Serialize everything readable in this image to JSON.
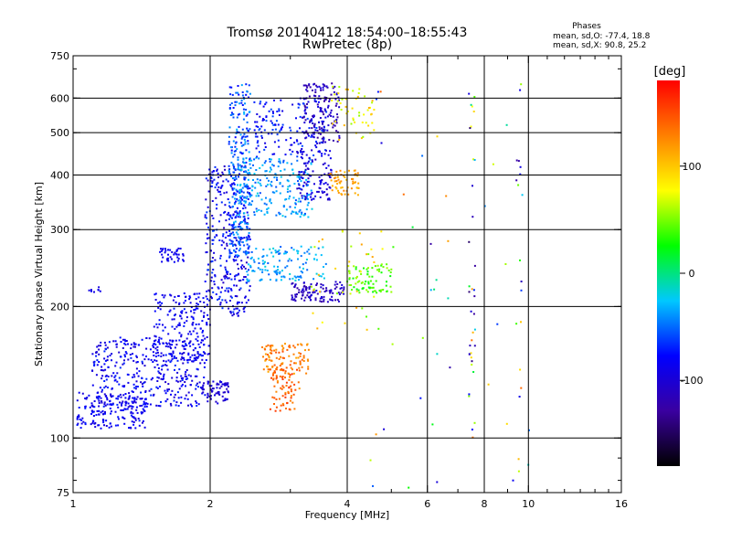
{
  "chart_data": {
    "type": "scatter",
    "title": "Tromsø 20140412 18:54:00–18:55:43",
    "subtitle": "RwPretec (8p)",
    "stats": {
      "heading": "Phases",
      "line1": "mean, sd,O: -77.4, 18.8",
      "line2": "mean, sd,X:  90.8, 25.2"
    },
    "xlabel": "Frequency [MHz]",
    "ylabel": "Stationary phase Virtual Height [km]",
    "x_scale": "log",
    "y_scale": "log",
    "xlim": [
      1,
      16
    ],
    "ylim": [
      75,
      750
    ],
    "x_ticks": [
      1,
      2,
      4,
      6,
      8,
      10,
      16
    ],
    "x_tick_labels": [
      "1",
      "2",
      "4",
      "6",
      "8",
      "10",
      "16"
    ],
    "y_ticks": [
      75,
      100,
      200,
      300,
      400,
      500,
      600,
      750
    ],
    "y_tick_labels": [
      "75",
      "100",
      "200",
      "300",
      "400",
      "500",
      "600",
      "750"
    ],
    "grid": true,
    "grid_x": [
      2,
      4,
      6,
      8,
      10
    ],
    "grid_y": [
      100,
      200,
      300,
      400,
      500,
      600
    ],
    "colorbar": {
      "label": "[deg]",
      "range": [
        -180,
        180
      ],
      "ticks": [
        100,
        0,
        -100
      ],
      "tick_labels": [
        "100",
        "0",
        "-100"
      ],
      "colors": [
        "#000000",
        "#3a00a0",
        "#0000ff",
        "#00c8ff",
        "#00ff00",
        "#ffff00",
        "#ff8000",
        "#ff0000"
      ]
    },
    "clusters": [
      {
        "f": [
          1.02,
          1.45
        ],
        "h": [
          105,
          128
        ],
        "phase": [
          -100,
          -70
        ],
        "n": 180
      },
      {
        "f": [
          1.1,
          1.95
        ],
        "h": [
          118,
          170
        ],
        "phase": [
          -105,
          -65
        ],
        "n": 380
      },
      {
        "f": [
          1.5,
          2.0
        ],
        "h": [
          150,
          215
        ],
        "phase": [
          -100,
          -70
        ],
        "n": 200
      },
      {
        "f": [
          1.55,
          1.75
        ],
        "h": [
          252,
          272
        ],
        "phase": [
          -95,
          -80
        ],
        "n": 40
      },
      {
        "f": [
          1.08,
          1.15
        ],
        "h": [
          215,
          222
        ],
        "phase": [
          -100,
          -85
        ],
        "n": 8
      },
      {
        "f": [
          1.9,
          2.2
        ],
        "h": [
          120,
          135
        ],
        "phase": [
          -110,
          -90
        ],
        "n": 70
      },
      {
        "f": [
          1.95,
          2.45
        ],
        "h": [
          190,
          420
        ],
        "phase": [
          -110,
          -60
        ],
        "n": 330
      },
      {
        "f": [
          2.2,
          2.45
        ],
        "h": [
          260,
          650
        ],
        "phase": [
          -80,
          -30
        ],
        "n": 260
      },
      {
        "f": [
          2.3,
          3.35
        ],
        "h": [
          320,
          440
        ],
        "phase": [
          -60,
          -20
        ],
        "n": 220
      },
      {
        "f": [
          2.5,
          3.6
        ],
        "h": [
          440,
          600
        ],
        "phase": [
          -95,
          -55
        ],
        "n": 150
      },
      {
        "f": [
          3.2,
          3.85
        ],
        "h": [
          470,
          650
        ],
        "phase": [
          -130,
          -95
        ],
        "n": 150
      },
      {
        "f": [
          3.1,
          3.7
        ],
        "h": [
          350,
          460
        ],
        "phase": [
          -110,
          -85
        ],
        "n": 110
      },
      {
        "f": [
          3.0,
          3.95
        ],
        "h": [
          205,
          228
        ],
        "phase": [
          -125,
          -95
        ],
        "n": 110
      },
      {
        "f": [
          2.4,
          3.6
        ],
        "h": [
          228,
          275
        ],
        "phase": [
          -55,
          -15
        ],
        "n": 130
      },
      {
        "f": [
          2.6,
          3.3
        ],
        "h": [
          140,
          165
        ],
        "phase": [
          110,
          150
        ],
        "n": 100
      },
      {
        "f": [
          2.7,
          3.15
        ],
        "h": [
          115,
          145
        ],
        "phase": [
          120,
          160
        ],
        "n": 80
      },
      {
        "f": [
          3.65,
          4.25
        ],
        "h": [
          360,
          410
        ],
        "phase": [
          100,
          130
        ],
        "n": 60
      },
      {
        "f": [
          4.0,
          5.0
        ],
        "h": [
          215,
          250
        ],
        "phase": [
          20,
          60
        ],
        "n": 80
      },
      {
        "f": [
          3.7,
          4.6
        ],
        "h": [
          480,
          640
        ],
        "phase": [
          50,
          110
        ],
        "n": 50
      },
      {
        "f": [
          3.3,
          4.8
        ],
        "h": [
          175,
          300
        ],
        "phase": [
          40,
          120
        ],
        "n": 40
      },
      {
        "f": [
          4.5,
          10.2
        ],
        "h": [
          76,
          650
        ],
        "phase": [
          -130,
          140
        ],
        "n": 45
      },
      {
        "f": [
          7.4,
          7.65
        ],
        "h": [
          100,
          640
        ],
        "phase": [
          -160,
          140
        ],
        "n": 35
      },
      {
        "f": [
          9.4,
          9.7
        ],
        "h": [
          80,
          640
        ],
        "phase": [
          -130,
          130
        ],
        "n": 15
      }
    ]
  }
}
